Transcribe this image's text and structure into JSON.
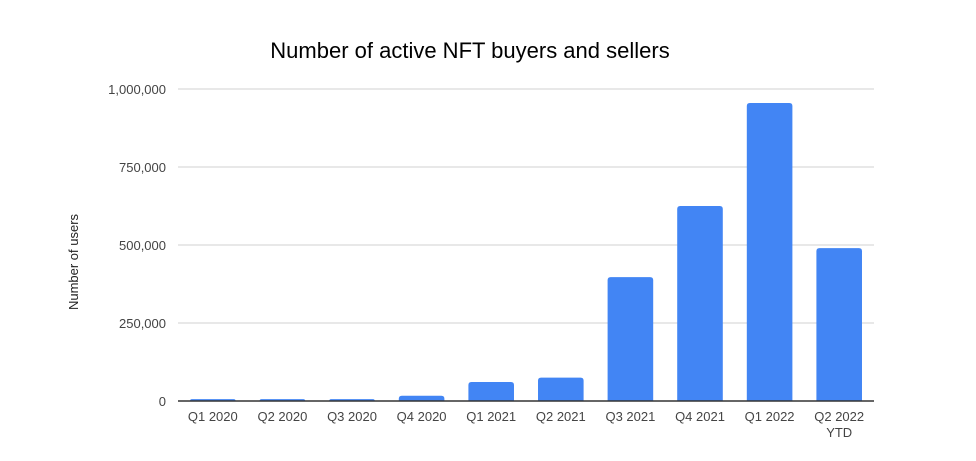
{
  "chart_data": {
    "type": "bar",
    "title": "Number of active NFT buyers and sellers",
    "xlabel": "",
    "ylabel": "Number of users",
    "categories": [
      "Q1 2020",
      "Q2 2020",
      "Q3 2020",
      "Q4 2020",
      "Q1 2021",
      "Q2 2021",
      "Q3 2021",
      "Q4 2021",
      "Q1 2022",
      "Q2 2022 YTD"
    ],
    "category_lines": [
      [
        "Q1 2020"
      ],
      [
        "Q2 2020"
      ],
      [
        "Q3 2020"
      ],
      [
        "Q4 2020"
      ],
      [
        "Q1 2021"
      ],
      [
        "Q2 2021"
      ],
      [
        "Q3 2021"
      ],
      [
        "Q4 2021"
      ],
      [
        "Q1 2022"
      ],
      [
        "Q2 2022",
        "YTD"
      ]
    ],
    "values": [
      6000,
      6000,
      6000,
      17000,
      61000,
      75000,
      397000,
      625000,
      955000,
      490000
    ],
    "ylim": [
      0,
      1000000
    ],
    "yticks": [
      0,
      250000,
      500000,
      750000,
      1000000
    ],
    "ytick_labels": [
      "0",
      "250,000",
      "500,000",
      "750,000",
      "1,000,000"
    ],
    "grid": true,
    "legend": "none",
    "bar_color": "#4285f4"
  }
}
